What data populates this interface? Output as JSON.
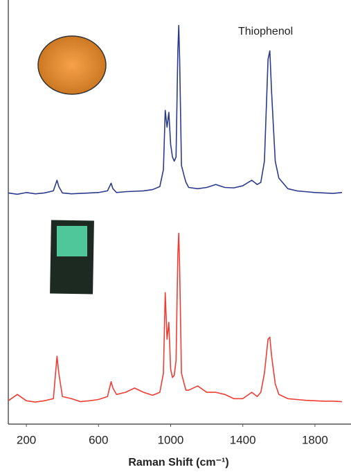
{
  "chart_data": {
    "type": "line",
    "annotation": "Thiophenol",
    "xlabel": "Raman Shift (cm⁻¹)",
    "xlim": [
      100,
      2000
    ],
    "xticks": [
      200,
      600,
      1000,
      1400,
      1800
    ],
    "ylim": [
      0,
      100
    ],
    "x": [
      100,
      150,
      200,
      250,
      300,
      350,
      370,
      380,
      400,
      450,
      500,
      550,
      600,
      650,
      670,
      680,
      700,
      750,
      800,
      850,
      900,
      940,
      960,
      970,
      980,
      990,
      1000,
      1010,
      1020,
      1030,
      1040,
      1045,
      1050,
      1060,
      1075,
      1085,
      1100,
      1150,
      1200,
      1250,
      1300,
      1350,
      1400,
      1450,
      1480,
      1500,
      1520,
      1540,
      1550,
      1560,
      1580,
      1600,
      1650,
      1700,
      1750,
      1800,
      1850,
      1900,
      1950
    ],
    "series": [
      {
        "color": "#2b3a8c",
        "values": [
          54.5,
          54.2,
          54.6,
          54.3,
          54.5,
          55,
          57.5,
          56,
          54.5,
          54.3,
          54.4,
          54.5,
          54.6,
          55,
          56.8,
          55.5,
          54.6,
          54.8,
          54.9,
          55,
          55.3,
          56,
          60,
          74,
          70,
          73.5,
          66,
          63,
          62,
          63,
          88,
          94,
          86,
          61,
          58.5,
          57,
          55.8,
          55.5,
          55.8,
          56.5,
          55.8,
          55.7,
          56.2,
          57.5,
          56.5,
          57,
          62,
          86,
          88,
          78,
          62,
          58,
          55.5,
          55,
          54.8,
          54.6,
          54.5,
          54.4,
          54.6
        ]
      },
      {
        "color": "#f03c32",
        "values": [
          5.5,
          7,
          5.5,
          5.2,
          5.5,
          6,
          16,
          12,
          6.5,
          6,
          5.3,
          5.5,
          5.8,
          6.5,
          10,
          8.5,
          7,
          7.5,
          8.5,
          7.5,
          6.8,
          7.5,
          12,
          31,
          20,
          24,
          13,
          11,
          11.5,
          15,
          40,
          45,
          37,
          12,
          9.5,
          8,
          8,
          9,
          7.5,
          7.5,
          7,
          6,
          6,
          7.5,
          6.5,
          7.5,
          12,
          20,
          20.5,
          16,
          9.5,
          7,
          6,
          5.8,
          5.6,
          5.5,
          5.4,
          5.4,
          5.3
        ]
      }
    ]
  }
}
